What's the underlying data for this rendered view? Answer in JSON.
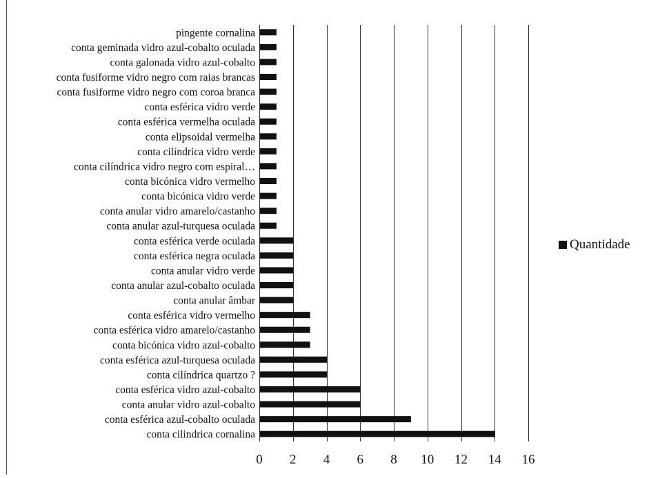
{
  "chart_data": {
    "type": "bar",
    "orientation": "horizontal",
    "categories": [
      "conta cilindrica cornalina",
      "conta esférica azul-cobalto oculada ",
      "conta anular vidro azul-cobalto",
      "conta esférica vidro azul-cobalto",
      "conta cilíndrica quartzo ?",
      "conta esférica azul-turquesa oculada ",
      "conta bicónica vidro azul-cobalto",
      "conta esférica vidro amarelo/castanho",
      "conta esférica vidro vermelho",
      "conta anular âmbar",
      "conta anular azul-cobalto oculada",
      "conta anular vidro verde",
      "conta esférica negra oculada",
      "conta esférica verde oculada",
      "conta anular azul-turquesa oculada",
      "conta anular vidro amarelo/castanho",
      "conta bicónica vidro verde",
      "conta bicónica vidro vermelho",
      "conta cilíndrica vidro negro com espiral…",
      "conta cilíndrica vidro verde",
      "conta elipsoidal vermelha",
      "conta esférica vermelha oculada",
      "conta esférica vidro verde",
      "conta fusiforme vidro negro com coroa branca",
      "conta fusiforme vidro negro com raias brancas",
      "conta galonada vidro azul-cobalto",
      "conta geminada vidro azul-cobalto oculada",
      "pingente cornalina"
    ],
    "series": [
      {
        "name": "Quantidade",
        "values": [
          14,
          9,
          6,
          6,
          4,
          4,
          3,
          3,
          3,
          2,
          2,
          2,
          2,
          2,
          1,
          1,
          1,
          1,
          1,
          1,
          1,
          1,
          1,
          1,
          1,
          1,
          1,
          1
        ]
      }
    ],
    "xlim": [
      0,
      16
    ],
    "xticks": [
      0,
      2,
      4,
      6,
      8,
      10,
      12,
      14,
      16
    ],
    "grid": "vertical",
    "legend": "right",
    "colors": {
      "bar": "#111111",
      "grid": "#333333"
    }
  }
}
